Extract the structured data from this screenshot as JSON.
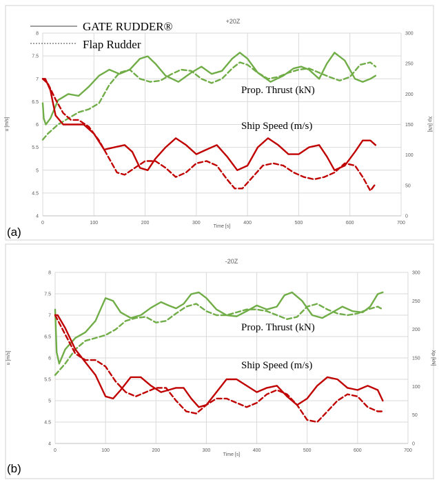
{
  "chart_data": [
    {
      "type": "line",
      "panel_label": "(a)",
      "title": "+20Z",
      "xlabel": "Time [s]",
      "ylabel_left": "u [m/s]",
      "ylabel_right": "Xp [kN]",
      "xlim": [
        0,
        700
      ],
      "ylim_left": [
        4,
        8
      ],
      "ylim_right": [
        0,
        300
      ],
      "x_ticks": [
        "0",
        "100",
        "200",
        "300",
        "400",
        "500",
        "600",
        "700"
      ],
      "y_ticks_left": [
        "4",
        "4.5",
        "5",
        "5.5",
        "6",
        "6.5",
        "7",
        "7.5",
        "8"
      ],
      "y_ticks_right": [
        "0",
        "50",
        "100",
        "150",
        "200",
        "250",
        "300"
      ],
      "grid": true,
      "legend": [
        {
          "label": "GATE RUDDER®",
          "style": "solid"
        },
        {
          "label": "Flap Rudder",
          "style": "dashed"
        }
      ],
      "annotations": [
        "Prop. Thrust (kN)",
        "Ship Speed (m/s)"
      ],
      "colors": {
        "thrust": "#70ad47",
        "speed": "#c00000"
      },
      "series": [
        {
          "group": "thrust",
          "axis": "right",
          "style": "solid",
          "x": [
            0,
            2,
            6,
            15,
            30,
            50,
            70,
            90,
            110,
            130,
            150,
            170,
            190,
            205,
            220,
            240,
            265,
            290,
            310,
            330,
            350,
            370,
            385,
            400,
            420,
            445,
            470,
            490,
            505,
            520,
            540,
            555,
            570,
            590,
            610,
            625,
            640,
            650
          ],
          "y": [
            185,
            160,
            150,
            160,
            190,
            200,
            197,
            212,
            230,
            240,
            233,
            240,
            258,
            262,
            250,
            230,
            220,
            235,
            245,
            233,
            238,
            258,
            268,
            258,
            235,
            220,
            230,
            242,
            245,
            240,
            225,
            250,
            268,
            255,
            225,
            220,
            225,
            230
          ]
        },
        {
          "group": "thrust",
          "axis": "right",
          "style": "dashed",
          "x": [
            0,
            10,
            30,
            50,
            70,
            90,
            110,
            130,
            150,
            170,
            190,
            210,
            230,
            250,
            270,
            290,
            310,
            330,
            350,
            370,
            385,
            400,
            420,
            440,
            460,
            480,
            500,
            520,
            540,
            560,
            580,
            600,
            620,
            640,
            650
          ],
          "y": [
            125,
            135,
            150,
            160,
            170,
            175,
            185,
            215,
            235,
            240,
            225,
            220,
            222,
            232,
            240,
            238,
            225,
            218,
            225,
            242,
            252,
            248,
            235,
            225,
            228,
            235,
            240,
            242,
            235,
            228,
            222,
            228,
            248,
            252,
            245
          ]
        },
        {
          "group": "speed",
          "axis": "left",
          "style": "solid",
          "x": [
            0,
            5,
            15,
            25,
            40,
            60,
            80,
            100,
            120,
            140,
            160,
            175,
            190,
            205,
            220,
            240,
            260,
            280,
            300,
            320,
            340,
            360,
            380,
            400,
            420,
            440,
            460,
            480,
            500,
            520,
            540,
            555,
            570,
            590,
            610,
            625,
            640,
            650
          ],
          "y": [
            7.0,
            7.0,
            6.75,
            6.2,
            6.0,
            6.0,
            6.0,
            5.8,
            5.45,
            5.5,
            5.55,
            5.4,
            5.05,
            5.0,
            5.25,
            5.5,
            5.7,
            5.55,
            5.35,
            5.45,
            5.55,
            5.3,
            5.0,
            5.1,
            5.5,
            5.7,
            5.55,
            5.35,
            5.35,
            5.5,
            5.55,
            5.3,
            5.0,
            5.1,
            5.4,
            5.65,
            5.65,
            5.55
          ]
        },
        {
          "group": "speed",
          "axis": "left",
          "style": "dashed",
          "x": [
            0,
            10,
            25,
            40,
            55,
            70,
            90,
            110,
            130,
            145,
            160,
            180,
            200,
            220,
            240,
            260,
            280,
            300,
            320,
            340,
            360,
            375,
            390,
            410,
            430,
            450,
            470,
            490,
            510,
            530,
            550,
            570,
            590,
            610,
            625,
            640,
            650
          ],
          "y": [
            7.0,
            6.9,
            6.55,
            6.25,
            6.1,
            6.1,
            5.95,
            5.65,
            5.25,
            4.95,
            4.9,
            5.05,
            5.2,
            5.2,
            5.05,
            4.85,
            4.95,
            5.15,
            5.2,
            5.1,
            4.8,
            4.6,
            4.6,
            4.85,
            5.1,
            5.15,
            5.1,
            4.95,
            4.85,
            4.8,
            4.85,
            4.95,
            5.15,
            5.1,
            4.85,
            4.55,
            4.7
          ]
        }
      ]
    },
    {
      "type": "line",
      "panel_label": "(b)",
      "title": "-20Z",
      "xlabel": "Time [s]",
      "ylabel_left": "u [m/s]",
      "ylabel_right": "Xp [kN]",
      "xlim": [
        0,
        700
      ],
      "ylim_left": [
        4,
        8
      ],
      "ylim_right": [
        0,
        300
      ],
      "x_ticks": [
        "0",
        "100",
        "200",
        "300",
        "400",
        "500",
        "600",
        "700"
      ],
      "y_ticks_left": [
        "4",
        "4.5",
        "5",
        "5.5",
        "6",
        "6.5",
        "7",
        "7.5",
        "8"
      ],
      "y_ticks_right": [
        "0",
        "50",
        "100",
        "150",
        "200",
        "250",
        "300"
      ],
      "grid": true,
      "annotations": [
        "Prop. Thrust (kN)",
        "Ship Speed (m/s)"
      ],
      "colors": {
        "thrust": "#70ad47",
        "speed": "#c00000"
      },
      "series": [
        {
          "group": "thrust",
          "axis": "right",
          "style": "solid",
          "x": [
            0,
            3,
            8,
            20,
            40,
            60,
            80,
            100,
            115,
            130,
            150,
            170,
            190,
            210,
            225,
            240,
            255,
            270,
            285,
            300,
            320,
            340,
            360,
            380,
            400,
            420,
            440,
            455,
            470,
            490,
            510,
            530,
            550,
            570,
            590,
            610,
            625,
            640,
            650
          ],
          "y": [
            235,
            160,
            140,
            165,
            185,
            195,
            215,
            255,
            250,
            230,
            220,
            225,
            238,
            248,
            242,
            237,
            245,
            262,
            265,
            255,
            235,
            225,
            223,
            232,
            242,
            235,
            240,
            260,
            265,
            250,
            225,
            220,
            230,
            240,
            232,
            230,
            240,
            262,
            265
          ]
        },
        {
          "group": "thrust",
          "axis": "right",
          "style": "dashed",
          "x": [
            0,
            20,
            40,
            60,
            80,
            100,
            120,
            140,
            160,
            180,
            200,
            220,
            240,
            260,
            280,
            300,
            320,
            340,
            360,
            380,
            400,
            420,
            440,
            460,
            480,
            500,
            520,
            540,
            560,
            580,
            600,
            620,
            640,
            650
          ],
          "y": [
            120,
            140,
            165,
            180,
            185,
            190,
            200,
            215,
            220,
            222,
            212,
            215,
            228,
            240,
            245,
            232,
            225,
            225,
            230,
            235,
            235,
            232,
            225,
            218,
            222,
            240,
            245,
            235,
            228,
            225,
            228,
            235,
            240,
            235
          ]
        },
        {
          "group": "speed",
          "axis": "left",
          "style": "solid",
          "x": [
            0,
            5,
            20,
            40,
            60,
            80,
            100,
            115,
            130,
            150,
            170,
            190,
            210,
            225,
            240,
            255,
            270,
            285,
            300,
            320,
            340,
            360,
            380,
            400,
            420,
            440,
            460,
            480,
            500,
            520,
            540,
            560,
            580,
            600,
            620,
            640,
            650
          ],
          "y": [
            7.0,
            7.0,
            6.7,
            6.2,
            5.9,
            5.6,
            5.1,
            5.05,
            5.25,
            5.55,
            5.55,
            5.35,
            5.2,
            5.25,
            5.3,
            5.3,
            5.05,
            4.85,
            4.9,
            5.2,
            5.5,
            5.5,
            5.35,
            5.2,
            5.3,
            5.35,
            5.1,
            4.9,
            5.05,
            5.35,
            5.55,
            5.5,
            5.3,
            5.25,
            5.35,
            5.25,
            5.0
          ]
        },
        {
          "group": "speed",
          "axis": "left",
          "style": "dashed",
          "x": [
            0,
            20,
            40,
            60,
            80,
            100,
            120,
            140,
            160,
            180,
            200,
            220,
            240,
            260,
            280,
            300,
            320,
            340,
            360,
            380,
            400,
            420,
            440,
            460,
            480,
            500,
            520,
            540,
            560,
            580,
            600,
            620,
            640,
            650
          ],
          "y": [
            7.0,
            6.55,
            6.1,
            5.95,
            5.95,
            5.8,
            5.45,
            5.2,
            5.1,
            5.2,
            5.3,
            5.3,
            5.0,
            4.75,
            4.7,
            4.9,
            5.05,
            5.05,
            4.95,
            4.85,
            4.95,
            5.15,
            5.25,
            5.15,
            4.9,
            4.55,
            4.5,
            4.75,
            5.0,
            5.15,
            5.1,
            4.85,
            4.75,
            4.75
          ]
        }
      ]
    }
  ]
}
